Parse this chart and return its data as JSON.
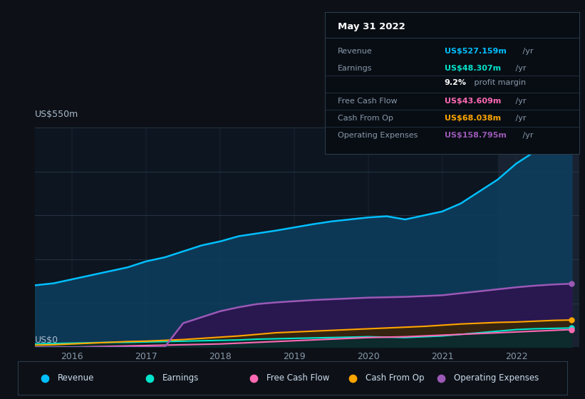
{
  "bg_color": "#0d1117",
  "plot_bg_color": "#0d1520",
  "title": "May 31 2022",
  "ylabel": "US$550m",
  "y0label": "US$0",
  "ylim": [
    0,
    550
  ],
  "xlim": [
    2015.5,
    2022.85
  ],
  "grid_color": "#2a3a4a",
  "tooltip_bg": "#080d14",
  "tooltip_border": "#2a3a4a",
  "x": [
    2015.5,
    2015.75,
    2016.0,
    2016.25,
    2016.5,
    2016.75,
    2017.0,
    2017.25,
    2017.5,
    2017.75,
    2018.0,
    2018.25,
    2018.5,
    2018.75,
    2019.0,
    2019.25,
    2019.5,
    2019.75,
    2020.0,
    2020.25,
    2020.5,
    2020.75,
    2021.0,
    2021.25,
    2021.5,
    2021.75,
    2022.0,
    2022.25,
    2022.5,
    2022.75
  ],
  "revenue": [
    155,
    160,
    170,
    180,
    190,
    200,
    215,
    225,
    240,
    255,
    265,
    278,
    285,
    292,
    300,
    308,
    315,
    320,
    325,
    328,
    320,
    330,
    340,
    360,
    390,
    420,
    460,
    490,
    520,
    527
  ],
  "earnings": [
    8,
    9,
    10,
    11,
    12,
    12,
    13,
    14,
    15,
    16,
    17,
    18,
    20,
    21,
    22,
    23,
    24,
    25,
    26,
    25,
    24,
    26,
    28,
    32,
    36,
    40,
    44,
    46,
    47,
    48
  ],
  "free_cash_flow": [
    0,
    0,
    0,
    1,
    2,
    3,
    4,
    5,
    6,
    7,
    8,
    10,
    12,
    14,
    16,
    18,
    20,
    22,
    24,
    25,
    26,
    28,
    30,
    32,
    34,
    36,
    38,
    40,
    42,
    44
  ],
  "cash_from_op": [
    5,
    6,
    8,
    10,
    12,
    14,
    15,
    17,
    19,
    22,
    25,
    28,
    32,
    36,
    38,
    40,
    42,
    44,
    46,
    48,
    50,
    52,
    55,
    58,
    60,
    62,
    63,
    65,
    67,
    68
  ],
  "operating_expenses": [
    0,
    0,
    0,
    0,
    0,
    0,
    0,
    0,
    60,
    75,
    90,
    100,
    108,
    112,
    115,
    118,
    120,
    122,
    124,
    125,
    126,
    128,
    130,
    135,
    140,
    145,
    150,
    154,
    157,
    159
  ],
  "revenue_color": "#00bfff",
  "revenue_fill": "#0d3d5c",
  "earnings_color": "#00e5cc",
  "earnings_fill": "#003030",
  "fcf_color": "#ff69b4",
  "fcf_fill": "#4a1028",
  "cashop_color": "#ffa500",
  "cashop_fill": "#3a2800",
  "opex_color": "#9b59b6",
  "opex_fill": "#2d1450",
  "highlight_x_start": 2021.75,
  "highlight_x_end": 2022.85,
  "legend_items": [
    {
      "label": "Revenue",
      "color": "#00bfff"
    },
    {
      "label": "Earnings",
      "color": "#00e5cc"
    },
    {
      "label": "Free Cash Flow",
      "color": "#ff69b4"
    },
    {
      "label": "Cash From Op",
      "color": "#ffa500"
    },
    {
      "label": "Operating Expenses",
      "color": "#9b59b6"
    }
  ],
  "info_title": "May 31 2022",
  "info_rows": [
    {
      "label": "Revenue",
      "value": "US$527.159m",
      "suffix": " /yr",
      "color": "#00bfff"
    },
    {
      "label": "Earnings",
      "value": "US$48.307m",
      "suffix": " /yr",
      "color": "#00e5cc"
    },
    {
      "label": "",
      "value": "9.2%",
      "suffix": " profit margin",
      "color": "#ffffff"
    },
    {
      "label": "Free Cash Flow",
      "value": "US$43.609m",
      "suffix": " /yr",
      "color": "#ff69b4"
    },
    {
      "label": "Cash From Op",
      "value": "US$68.038m",
      "suffix": " /yr",
      "color": "#ffa500"
    },
    {
      "label": "Operating Expenses",
      "value": "US$158.795m",
      "suffix": " /yr",
      "color": "#9b59b6"
    }
  ]
}
